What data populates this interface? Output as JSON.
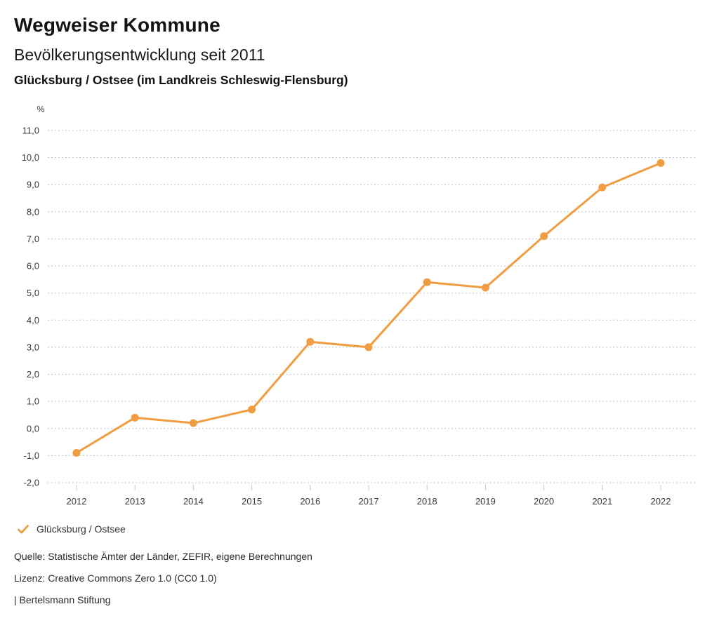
{
  "header": {
    "title": "Wegweiser Kommune",
    "subtitle": "Bevölkerungsentwicklung seit 2011",
    "region": "Glücksburg / Ostsee (im Landkreis Schleswig-Flensburg)"
  },
  "chart_data": {
    "type": "line",
    "title": "Bevölkerungsentwicklung seit 2011",
    "unit_label": "%",
    "categories": [
      "2012",
      "2013",
      "2014",
      "2015",
      "2016",
      "2017",
      "2018",
      "2019",
      "2020",
      "2021",
      "2022"
    ],
    "series": [
      {
        "name": "Glücksburg / Ostsee",
        "values": [
          -0.9,
          0.4,
          0.2,
          0.7,
          3.2,
          3.0,
          5.4,
          5.2,
          7.1,
          8.9,
          9.8
        ],
        "color": "#f09c40"
      }
    ],
    "ylim": [
      -2.0,
      11.0
    ],
    "ytick_step": 1.0,
    "decimal_separator": ",",
    "grid": "horizontal-dotted",
    "legend_position": "bottom-left",
    "xlabel": "",
    "ylabel": "%"
  },
  "legend": {
    "label": "Glücksburg / Ostsee",
    "check_icon_color": "#f09c40"
  },
  "footer": {
    "source": "Quelle: Statistische Ämter der Länder, ZEFIR, eigene Berechnungen",
    "license": "Lizenz: Creative Commons Zero 1.0 (CC0 1.0)",
    "attribution": "| Bertelsmann Stiftung"
  },
  "colors": {
    "accent": "#f09c40",
    "grid": "#c3c3c3",
    "tick": "#c8c8c8",
    "axis_text": "#3a3a3a"
  }
}
